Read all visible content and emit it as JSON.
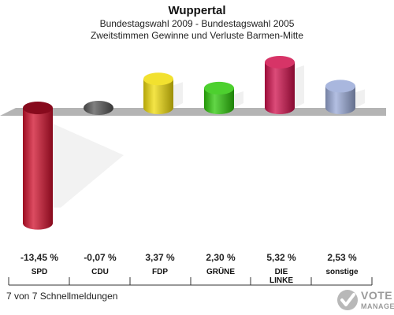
{
  "header": {
    "title": "Wuppertal",
    "subtitle1": "Bundestagswahl 2009 - Bundestagswahl 2005",
    "subtitle2": "Zweitstimmen Gewinne und Verluste Barmen-Mitte"
  },
  "footer": {
    "text": "7 von 7 Schnellmeldungen"
  },
  "logo": {
    "line1": "VOTE",
    "line2": "MANAGER"
  },
  "chart_data": {
    "type": "bar",
    "title": "Wuppertal",
    "subtitle": "Bundestagswahl 2009 - Bundestagswahl 2005 / Zweitstimmen Gewinne und Verluste Barmen-Mitte",
    "categories": [
      "SPD",
      "CDU",
      "FDP",
      "GRÜNE",
      "DIE LINKE",
      "sonstige"
    ],
    "category_lines": [
      [
        "SPD"
      ],
      [
        "CDU"
      ],
      [
        "FDP"
      ],
      [
        "GRÜNE"
      ],
      [
        "DIE",
        "LINKE"
      ],
      [
        "sonstige"
      ]
    ],
    "values": [
      -13.45,
      -0.07,
      3.37,
      2.3,
      5.32,
      2.53
    ],
    "value_labels": [
      "-13,45 %",
      "-0,07 %",
      "3,37 %",
      "2,30 %",
      "5,32 %",
      "2,53 %"
    ],
    "colors": [
      "#d0102c",
      "#555555",
      "#f0dc0a",
      "#2ec80a",
      "#d0104c",
      "#9aaad8"
    ],
    "unit": "%",
    "xlabel": "",
    "ylabel": "",
    "grid": false,
    "legend": "none"
  }
}
